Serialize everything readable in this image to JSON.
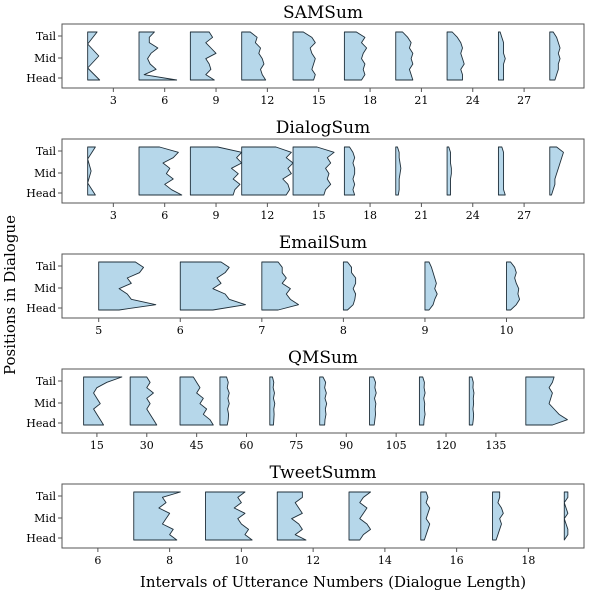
{
  "colors": {
    "violin_fill": "#b6d7ea",
    "violin_stroke": "#1f2f3a",
    "axes_stroke": "#555555"
  },
  "chart_data": {
    "type": "violin",
    "xlabel": "Intervals of Utterance Numbers (Dialogue Length)",
    "ylabel": "Positions in Dialogue",
    "position_labels": [
      "Tail",
      "Mid",
      "Head"
    ],
    "panels": [
      {
        "title": "SAMSum",
        "xlim": [
          0,
          30.5
        ],
        "xticks": [
          3,
          6,
          9,
          12,
          15,
          18,
          21,
          24,
          27
        ],
        "violins": [
          {
            "x": 1.5,
            "profile": [
              0.55,
              0.0,
              0.65,
              0.0,
              0.7
            ]
          },
          {
            "x": 4.5,
            "profile": [
              0.9,
              0.6,
              0.6,
              1.1,
              0.7,
              0.5,
              0.65,
              1.0,
              0.3,
              2.2
            ]
          },
          {
            "x": 7.5,
            "profile": [
              1.1,
              1.3,
              0.9,
              1.2,
              1.5,
              0.9,
              1.1,
              1.2,
              0.9,
              1.4
            ]
          },
          {
            "x": 10.5,
            "profile": [
              0.5,
              0.9,
              0.8,
              1.1,
              1.0,
              1.2,
              1.3,
              1.1,
              1.2,
              1.4
            ]
          },
          {
            "x": 13.5,
            "profile": [
              0.6,
              1.1,
              1.3,
              1.0,
              1.1,
              1.3,
              1.2,
              1.1,
              1.3,
              1.2
            ]
          },
          {
            "x": 16.5,
            "profile": [
              0.7,
              1.2,
              1.0,
              1.3,
              1.1,
              1.0,
              1.2,
              1.1,
              1.2,
              1.0
            ]
          },
          {
            "x": 19.5,
            "profile": [
              0.4,
              0.7,
              0.9,
              0.8,
              1.0,
              0.9,
              1.0,
              0.8,
              0.9,
              1.0
            ]
          },
          {
            "x": 22.5,
            "profile": [
              0.3,
              0.6,
              0.8,
              0.9,
              0.8,
              0.9,
              1.0,
              0.8,
              0.9,
              0.9
            ]
          },
          {
            "x": 25.5,
            "profile": [
              0.1,
              0.2,
              0.3,
              0.3,
              0.3,
              0.4,
              0.3,
              0.3,
              0.3,
              0.3
            ]
          },
          {
            "x": 28.5,
            "profile": [
              0.2,
              0.4,
              0.5,
              0.6,
              0.5,
              0.6,
              0.5,
              0.5,
              0.4,
              0.3
            ]
          }
        ]
      },
      {
        "title": "DialogSum",
        "xlim": [
          0,
          30.5
        ],
        "xticks": [
          3,
          6,
          9,
          12,
          15,
          18,
          21,
          24,
          27
        ],
        "violins": [
          {
            "x": 1.5,
            "profile": [
              0.45,
              0.0,
              0.2,
              0.0,
              0.45
            ]
          },
          {
            "x": 4.5,
            "profile": [
              1.2,
              2.3,
              2.0,
              1.4,
              1.8,
              1.6,
              2.0,
              1.5,
              1.9,
              2.5
            ]
          },
          {
            "x": 7.5,
            "profile": [
              1.6,
              3.0,
              2.7,
              3.0,
              2.4,
              2.8,
              2.5,
              2.9,
              2.6,
              2.5
            ]
          },
          {
            "x": 10.5,
            "profile": [
              2.0,
              2.9,
              2.6,
              3.0,
              2.7,
              2.9,
              2.4,
              2.7,
              2.8,
              2.6
            ]
          },
          {
            "x": 13.5,
            "profile": [
              1.4,
              2.4,
              2.0,
              2.2,
              1.9,
              2.1,
              2.0,
              2.2,
              1.9,
              1.8
            ]
          },
          {
            "x": 16.5,
            "profile": [
              0.3,
              0.5,
              0.6,
              0.5,
              0.6,
              0.6,
              0.5,
              0.6,
              0.5,
              0.6
            ]
          },
          {
            "x": 19.5,
            "profile": [
              0.1,
              0.2,
              0.2,
              0.25,
              0.3,
              0.25,
              0.2,
              0.2,
              0.2,
              0.15
            ]
          },
          {
            "x": 22.5,
            "profile": [
              0.1,
              0.2,
              0.2,
              0.2,
              0.25,
              0.25,
              0.2,
              0.2,
              0.2,
              0.2
            ]
          },
          {
            "x": 25.5,
            "profile": [
              0.2,
              0.3,
              0.3,
              0.3,
              0.3,
              0.3,
              0.3,
              0.3,
              0.3,
              0.4
            ]
          },
          {
            "x": 28.5,
            "profile": [
              0.4,
              0.8,
              0.7,
              0.6,
              0.5,
              0.4,
              0.3,
              0.3,
              0.2,
              0.1
            ]
          }
        ]
      },
      {
        "title": "EmailSum",
        "xlim": [
          4.55,
          10.95
        ],
        "xticks": [
          5,
          6,
          7,
          8,
          9,
          10
        ],
        "violins": [
          {
            "x": 5.0,
            "profile": [
              0.45,
              0.55,
              0.5,
              0.35,
              0.4,
              0.25,
              0.35,
              0.4,
              0.7,
              0.25
            ]
          },
          {
            "x": 6.0,
            "profile": [
              0.5,
              0.6,
              0.55,
              0.45,
              0.5,
              0.4,
              0.55,
              0.6,
              0.8,
              0.4
            ]
          },
          {
            "x": 7.0,
            "profile": [
              0.2,
              0.25,
              0.25,
              0.3,
              0.25,
              0.35,
              0.3,
              0.35,
              0.45,
              0.2
            ]
          },
          {
            "x": 8.0,
            "profile": [
              0.05,
              0.1,
              0.1,
              0.15,
              0.15,
              0.12,
              0.15,
              0.14,
              0.12,
              0.05
            ]
          },
          {
            "x": 9.0,
            "profile": [
              0.05,
              0.08,
              0.1,
              0.12,
              0.14,
              0.12,
              0.15,
              0.12,
              0.1,
              0.05
            ]
          },
          {
            "x": 10.0,
            "profile": [
              0.05,
              0.1,
              0.12,
              0.1,
              0.12,
              0.15,
              0.14,
              0.16,
              0.12,
              0.05
            ]
          }
        ]
      },
      {
        "title": "QMSum",
        "xlim": [
          4.5,
          161.5
        ],
        "xticks": [
          15,
          30,
          45,
          60,
          75,
          90,
          105,
          120,
          135
        ],
        "violins": [
          {
            "x": 11,
            "profile": [
              11.5,
              7,
              4,
              3,
              4,
              5,
              3,
              4,
              5,
              6
            ]
          },
          {
            "x": 25,
            "profile": [
              5,
              6,
              5,
              7,
              5,
              6,
              5,
              6,
              7,
              8
            ]
          },
          {
            "x": 40,
            "profile": [
              4,
              5,
              6,
              5,
              7,
              6,
              8,
              7,
              9,
              10
            ]
          },
          {
            "x": 52,
            "profile": [
              2.0,
              2.5,
              2.2,
              2.8,
              2.4,
              2.8,
              2.3,
              2.6,
              2.5,
              2.2
            ]
          },
          {
            "x": 67,
            "profile": [
              0.8,
              1.2,
              1.0,
              1.4,
              1.1,
              1.5,
              1.2,
              1.3,
              1.2,
              1.1
            ]
          },
          {
            "x": 82,
            "profile": [
              1.0,
              1.8,
              1.5,
              2.0,
              1.6,
              2.1,
              1.7,
              1.9,
              1.6,
              1.5
            ]
          },
          {
            "x": 97,
            "profile": [
              1.2,
              1.8,
              1.6,
              2.0,
              1.5,
              1.9,
              1.7,
              1.8,
              1.6,
              1.4
            ]
          },
          {
            "x": 112,
            "profile": [
              1.0,
              1.5,
              1.4,
              1.7,
              1.3,
              1.6,
              1.5,
              1.7,
              1.4,
              1.3
            ]
          },
          {
            "x": 127,
            "profile": [
              0.8,
              1.2,
              1.1,
              1.4,
              1.2,
              1.3,
              1.1,
              1.3,
              1.2,
              1.0
            ]
          },
          {
            "x": 144,
            "profile": [
              8.5,
              8.0,
              7.0,
              8.0,
              7.5,
              7.0,
              8.5,
              10.0,
              12.5,
              8.0
            ]
          }
        ]
      },
      {
        "title": "TweetSumm",
        "xlim": [
          5.0,
          19.55
        ],
        "xticks": [
          6,
          8,
          10,
          12,
          14,
          16,
          18
        ],
        "violins": [
          {
            "x": 7.0,
            "profile": [
              1.3,
              0.8,
              0.9,
              0.7,
              1.0,
              0.9,
              0.8,
              1.1,
              1.0,
              1.2
            ]
          },
          {
            "x": 9.0,
            "profile": [
              1.1,
              0.9,
              1.0,
              0.8,
              1.1,
              0.9,
              1.0,
              1.2,
              1.1,
              1.3
            ]
          },
          {
            "x": 11.0,
            "profile": [
              0.7,
              0.7,
              0.5,
              0.6,
              0.7,
              0.4,
              0.6,
              0.7,
              0.5,
              0.8
            ]
          },
          {
            "x": 13.0,
            "profile": [
              0.6,
              0.4,
              0.3,
              0.5,
              0.4,
              0.3,
              0.5,
              0.6,
              0.4,
              0.3
            ]
          },
          {
            "x": 15.0,
            "profile": [
              0.15,
              0.2,
              0.15,
              0.25,
              0.2,
              0.15,
              0.25,
              0.2,
              0.15,
              0.1
            ]
          },
          {
            "x": 17.0,
            "profile": [
              0.2,
              0.2,
              0.15,
              0.25,
              0.3,
              0.2,
              0.25,
              0.2,
              0.15,
              0.1
            ]
          },
          {
            "x": 19.0,
            "profile": [
              0.1,
              0.1,
              0.0,
              0.05,
              0.1,
              0.0,
              0.05,
              0.1,
              0.1,
              0.0
            ]
          }
        ]
      }
    ]
  }
}
